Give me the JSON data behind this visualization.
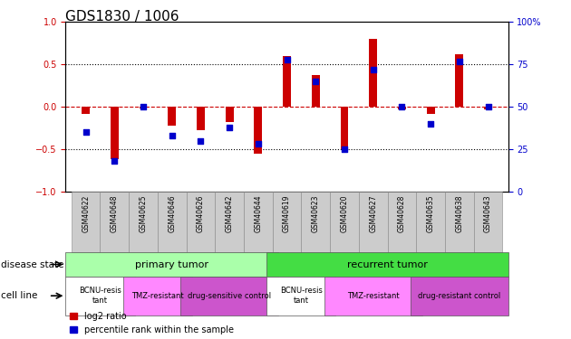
{
  "title": "GDS1830 / 1006",
  "samples": [
    "GSM40622",
    "GSM40648",
    "GSM40625",
    "GSM40646",
    "GSM40626",
    "GSM40642",
    "GSM40644",
    "GSM40619",
    "GSM40623",
    "GSM40620",
    "GSM40627",
    "GSM40628",
    "GSM40635",
    "GSM40638",
    "GSM40643"
  ],
  "log2_ratio": [
    -0.08,
    -0.62,
    -0.02,
    -0.22,
    -0.28,
    -0.18,
    -0.55,
    0.6,
    0.38,
    -0.5,
    0.8,
    -0.03,
    -0.08,
    0.62,
    -0.03
  ],
  "percentile": [
    35,
    18,
    50,
    33,
    30,
    38,
    28,
    78,
    65,
    25,
    72,
    50,
    40,
    77,
    50
  ],
  "ylim_left": [
    -1.0,
    1.0
  ],
  "ylim_right": [
    0,
    100
  ],
  "yticks_left": [
    -1,
    -0.5,
    0,
    0.5,
    1
  ],
  "yticks_right": [
    0,
    25,
    50,
    75,
    100
  ],
  "disease_state_groups": [
    {
      "label": "primary tumor",
      "start": 0,
      "end": 7,
      "color": "#AAFFAA"
    },
    {
      "label": "recurrent tumor",
      "start": 7,
      "end": 15,
      "color": "#44DD44"
    }
  ],
  "cell_line_groups": [
    {
      "label": "BCNU-resis\ntant",
      "start": 0,
      "end": 2,
      "color": "#FFFFFF"
    },
    {
      "label": "TMZ-resistant",
      "start": 2,
      "end": 4,
      "color": "#FF88FF"
    },
    {
      "label": "drug-sensitive control",
      "start": 4,
      "end": 7,
      "color": "#CC55CC"
    },
    {
      "label": "BCNU-resis\ntant",
      "start": 7,
      "end": 9,
      "color": "#FFFFFF"
    },
    {
      "label": "TMZ-resistant",
      "start": 9,
      "end": 12,
      "color": "#FF88FF"
    },
    {
      "label": "drug-resistant control",
      "start": 12,
      "end": 15,
      "color": "#CC55CC"
    }
  ],
  "bar_color_log2": "#CC0000",
  "bar_color_pct": "#0000CC",
  "label_disease_state": "disease state",
  "label_cell_line": "cell line",
  "legend_log2": "log2 ratio",
  "legend_pct": "percentile rank within the sample"
}
